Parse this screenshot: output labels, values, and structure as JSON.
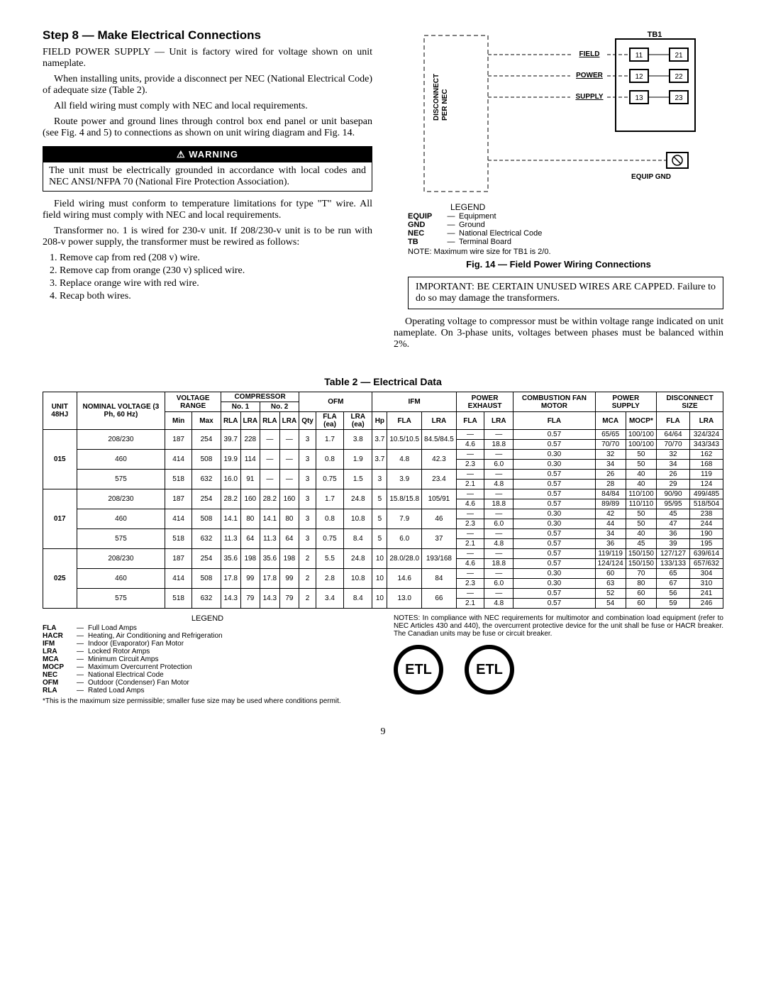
{
  "step_heading": "Step 8 — Make Electrical Connections",
  "p1": "FIELD POWER SUPPLY — Unit is factory wired for voltage shown on unit nameplate.",
  "p2": "When installing units, provide a disconnect per NEC (National Electrical Code) of adequate size (Table 2).",
  "p3": "All field wiring must comply with NEC and local requirements.",
  "p4": "Route power and ground lines through control box end panel or unit basepan (see Fig. 4 and 5) to connections as shown on unit wiring diagram and Fig. 14.",
  "warning_title": "⚠ WARNING",
  "warning_body": "The unit must be electrically grounded in accordance with local codes and NEC ANSI/NFPA 70 (National Fire Protection Association).",
  "p5": "Field wiring must conform to temperature limitations for type \"T\" wire. All field wiring must comply with NEC and local requirements.",
  "p6": "Transformer no. 1 is wired for 230-v unit. If 208/230-v unit is to be run with 208-v power supply, the transformer must be rewired as follows:",
  "steps": [
    "Remove cap from red (208 v) wire.",
    "Remove cap from orange (230 v) spliced wire.",
    "Replace orange wire with red wire.",
    "Recap both wires."
  ],
  "diagram": {
    "tb_label": "TB1",
    "field": "FIELD",
    "power": "POWER",
    "supply": "SUPPLY",
    "gnd_label": "EQUIP GND",
    "disc_label": "DISCONNECT\nPER NEC",
    "left_terms": [
      "11",
      "12",
      "13"
    ],
    "right_terms": [
      "21",
      "22",
      "23"
    ],
    "legend_title": "LEGEND",
    "legend": [
      {
        "abbr": "EQUIP",
        "def": "Equipment"
      },
      {
        "abbr": "GND",
        "def": "Ground"
      },
      {
        "abbr": "NEC",
        "def": "National Electrical Code"
      },
      {
        "abbr": "TB",
        "def": "Terminal Board"
      }
    ],
    "note": "NOTE: Maximum wire size for TB1 is 2/0."
  },
  "fig_caption": "Fig. 14 — Field Power Wiring Connections",
  "important": "IMPORTANT: BE CERTAIN UNUSED WIRES ARE CAPPED. Failure to do so may damage the transformers.",
  "p7": "Operating voltage to compressor must be within voltage range indicated on unit nameplate. On 3-phase units, voltages between phases must be balanced within 2%.",
  "table_title": "Table 2 — Electrical Data",
  "table": {
    "unit_label": "UNIT 48HJ",
    "nom_label": "NOMINAL VOLTAGE (3 Ph, 60 Hz)",
    "hdr": {
      "vr": "VOLTAGE RANGE",
      "comp": "COMPRESSOR",
      "no1": "No. 1",
      "no2": "No. 2",
      "ofm": "OFM",
      "ifm": "IFM",
      "pex": "POWER EXHAUST",
      "cfm": "COMBUSTION FAN MOTOR",
      "ps": "POWER SUPPLY",
      "disc": "DISCONNECT SIZE",
      "min": "Min",
      "max": "Max",
      "rla": "RLA",
      "lra": "LRA",
      "qty": "Qty",
      "flaea": "FLA (ea)",
      "lraea": "LRA (ea)",
      "hp": "Hp",
      "fla": "FLA",
      "mca": "MCA",
      "mocp": "MOCP*"
    },
    "units": [
      {
        "unit": "015",
        "rows": [
          {
            "nv": "208/230",
            "min": "187",
            "max": "254",
            "c1r": "39.7",
            "c1l": "228",
            "c2r": "—",
            "c2l": "—",
            "oq": "3",
            "of": "1.7",
            "ol": "3.8",
            "hp": "3.7",
            "ifla": "10.5/10.5",
            "ilra": "84.5/84.5",
            "sub": [
              {
                "pf": "—",
                "pl": "—",
                "cf": "0.57",
                "mca": "65/65",
                "mocp": "100/100",
                "df": "64/64",
                "dl": "324/324"
              },
              {
                "pf": "4.6",
                "pl": "18.8",
                "cf": "0.57",
                "mca": "70/70",
                "mocp": "100/100",
                "df": "70/70",
                "dl": "343/343"
              }
            ]
          },
          {
            "nv": "460",
            "min": "414",
            "max": "508",
            "c1r": "19.9",
            "c1l": "114",
            "c2r": "—",
            "c2l": "—",
            "oq": "3",
            "of": "0.8",
            "ol": "1.9",
            "hp": "3.7",
            "ifla": "4.8",
            "ilra": "42.3",
            "sub": [
              {
                "pf": "—",
                "pl": "—",
                "cf": "0.30",
                "mca": "32",
                "mocp": "50",
                "df": "32",
                "dl": "162"
              },
              {
                "pf": "2.3",
                "pl": "6.0",
                "cf": "0.30",
                "mca": "34",
                "mocp": "50",
                "df": "34",
                "dl": "168"
              }
            ]
          },
          {
            "nv": "575",
            "min": "518",
            "max": "632",
            "c1r": "16.0",
            "c1l": "91",
            "c2r": "—",
            "c2l": "—",
            "oq": "3",
            "of": "0.75",
            "ol": "1.5",
            "hp": "3",
            "ifla": "3.9",
            "ilra": "23.4",
            "sub": [
              {
                "pf": "—",
                "pl": "—",
                "cf": "0.57",
                "mca": "26",
                "mocp": "40",
                "df": "26",
                "dl": "119"
              },
              {
                "pf": "2.1",
                "pl": "4.8",
                "cf": "0.57",
                "mca": "28",
                "mocp": "40",
                "df": "29",
                "dl": "124"
              }
            ]
          }
        ]
      },
      {
        "unit": "017",
        "rows": [
          {
            "nv": "208/230",
            "min": "187",
            "max": "254",
            "c1r": "28.2",
            "c1l": "160",
            "c2r": "28.2",
            "c2l": "160",
            "oq": "3",
            "of": "1.7",
            "ol": "24.8",
            "hp": "5",
            "ifla": "15.8/15.8",
            "ilra": "105/91",
            "sub": [
              {
                "pf": "—",
                "pl": "—",
                "cf": "0.57",
                "mca": "84/84",
                "mocp": "110/100",
                "df": "90/90",
                "dl": "499/485"
              },
              {
                "pf": "4.6",
                "pl": "18.8",
                "cf": "0.57",
                "mca": "89/89",
                "mocp": "110/110",
                "df": "95/95",
                "dl": "518/504"
              }
            ]
          },
          {
            "nv": "460",
            "min": "414",
            "max": "508",
            "c1r": "14.1",
            "c1l": "80",
            "c2r": "14.1",
            "c2l": "80",
            "oq": "3",
            "of": "0.8",
            "ol": "10.8",
            "hp": "5",
            "ifla": "7.9",
            "ilra": "46",
            "sub": [
              {
                "pf": "—",
                "pl": "—",
                "cf": "0.30",
                "mca": "42",
                "mocp": "50",
                "df": "45",
                "dl": "238"
              },
              {
                "pf": "2.3",
                "pl": "6.0",
                "cf": "0.30",
                "mca": "44",
                "mocp": "50",
                "df": "47",
                "dl": "244"
              }
            ]
          },
          {
            "nv": "575",
            "min": "518",
            "max": "632",
            "c1r": "11.3",
            "c1l": "64",
            "c2r": "11.3",
            "c2l": "64",
            "oq": "3",
            "of": "0.75",
            "ol": "8.4",
            "hp": "5",
            "ifla": "6.0",
            "ilra": "37",
            "sub": [
              {
                "pf": "—",
                "pl": "—",
                "cf": "0.57",
                "mca": "34",
                "mocp": "40",
                "df": "36",
                "dl": "190"
              },
              {
                "pf": "2.1",
                "pl": "4.8",
                "cf": "0.57",
                "mca": "36",
                "mocp": "45",
                "df": "39",
                "dl": "195"
              }
            ]
          }
        ]
      },
      {
        "unit": "025",
        "rows": [
          {
            "nv": "208/230",
            "min": "187",
            "max": "254",
            "c1r": "35.6",
            "c1l": "198",
            "c2r": "35.6",
            "c2l": "198",
            "oq": "2",
            "of": "5.5",
            "ol": "24.8",
            "hp": "10",
            "ifla": "28.0/28.0",
            "ilra": "193/168",
            "sub": [
              {
                "pf": "—",
                "pl": "—",
                "cf": "0.57",
                "mca": "119/119",
                "mocp": "150/150",
                "df": "127/127",
                "dl": "639/614"
              },
              {
                "pf": "4.6",
                "pl": "18.8",
                "cf": "0.57",
                "mca": "124/124",
                "mocp": "150/150",
                "df": "133/133",
                "dl": "657/632"
              }
            ]
          },
          {
            "nv": "460",
            "min": "414",
            "max": "508",
            "c1r": "17.8",
            "c1l": "99",
            "c2r": "17.8",
            "c2l": "99",
            "oq": "2",
            "of": "2.8",
            "ol": "10.8",
            "hp": "10",
            "ifla": "14.6",
            "ilra": "84",
            "sub": [
              {
                "pf": "—",
                "pl": "—",
                "cf": "0.30",
                "mca": "60",
                "mocp": "70",
                "df": "65",
                "dl": "304"
              },
              {
                "pf": "2.3",
                "pl": "6.0",
                "cf": "0.30",
                "mca": "63",
                "mocp": "80",
                "df": "67",
                "dl": "310"
              }
            ]
          },
          {
            "nv": "575",
            "min": "518",
            "max": "632",
            "c1r": "14.3",
            "c1l": "79",
            "c2r": "14.3",
            "c2l": "79",
            "oq": "2",
            "of": "3.4",
            "ol": "8.4",
            "hp": "10",
            "ifla": "13.0",
            "ilra": "66",
            "sub": [
              {
                "pf": "—",
                "pl": "—",
                "cf": "0.57",
                "mca": "52",
                "mocp": "60",
                "df": "56",
                "dl": "241"
              },
              {
                "pf": "2.1",
                "pl": "4.8",
                "cf": "0.57",
                "mca": "54",
                "mocp": "60",
                "df": "59",
                "dl": "246"
              }
            ]
          }
        ]
      }
    ]
  },
  "legend2_title": "LEGEND",
  "legend2": [
    {
      "abbr": "FLA",
      "def": "Full Load Amps"
    },
    {
      "abbr": "HACR",
      "def": "Heating, Air Conditioning and Refrigeration"
    },
    {
      "abbr": "IFM",
      "def": "Indoor (Evaporator) Fan Motor"
    },
    {
      "abbr": "LRA",
      "def": "Locked Rotor Amps"
    },
    {
      "abbr": "MCA",
      "def": "Minimum Circuit Amps"
    },
    {
      "abbr": "MOCP",
      "def": "Maximum Overcurrent Protection"
    },
    {
      "abbr": "NEC",
      "def": "National Electrical Code"
    },
    {
      "abbr": "OFM",
      "def": "Outdoor (Condenser) Fan Motor"
    },
    {
      "abbr": "RLA",
      "def": "Rated Load Amps"
    }
  ],
  "footnote": "*This is the maximum size permissible; smaller fuse size may be used where conditions permit.",
  "notes_right": "NOTES: In compliance with NEC requirements for multimotor and combination load equipment (refer to NEC Articles 430 and 440), the overcurrent protective device for the unit shall be fuse or HACR breaker. The Canadian units may be fuse or circuit breaker.",
  "page_num": "9"
}
